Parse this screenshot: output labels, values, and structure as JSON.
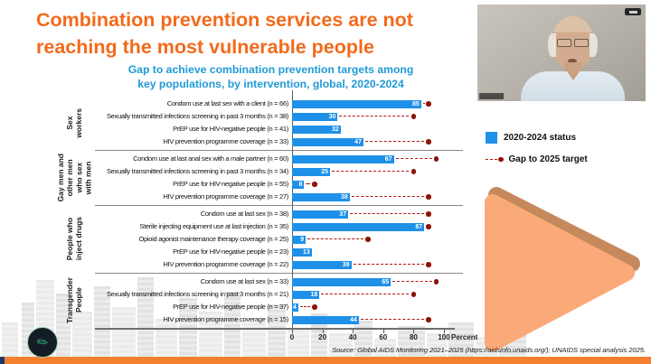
{
  "slide": {
    "title_line1": "Combination prevention services are not",
    "title_line2": "reaching the most vulnerable people",
    "source": "Source: Global AIDS Monitoring 2021–2025 (https://aidsinfo.unaids.org/); UNAIDS special analysis 2025."
  },
  "colors": {
    "title_orange": "#F26A1B",
    "subtitle_blue": "#1F9AD7",
    "bar_blue": "#1E90E8",
    "gap_dash_red": "#B01513",
    "target_dot_red": "#8E1307",
    "footer_accent_orange": "#F2802F",
    "triangle_fill": "#FAA978",
    "triangle_edge": "#C6895C"
  },
  "chart_data": {
    "type": "bar",
    "orientation": "horizontal",
    "title": "Gap to achieve combination prevention targets among key populations, by intervention, global, 2020-2024",
    "xlabel": "Percent",
    "xlim": [
      0,
      100
    ],
    "xticks": [
      0,
      20,
      40,
      60,
      80,
      100
    ],
    "legend": [
      {
        "label": "2020-2024 status",
        "marker": "bar",
        "color": "#1E90E8"
      },
      {
        "label": "Gap to 2025 target",
        "marker": "dashed-line-dot",
        "color": "#8E1307"
      }
    ],
    "groups": [
      {
        "name": "Sex workers",
        "name_lines": [
          "Sex",
          "workers"
        ],
        "rows": [
          {
            "label": "Condom use at last sex with a client (n = 66)",
            "status": 85,
            "target": 90
          },
          {
            "label": "Sexually transmitted infections screening in past 3 months (n = 38)",
            "status": 30,
            "target": 80
          },
          {
            "label": "PrEP use for HIV-negative people (n = 41)",
            "status": 32,
            "target": null
          },
          {
            "label": "HIV prevention programme coverage (n = 33)",
            "status": 47,
            "target": 90
          }
        ]
      },
      {
        "name": "Gay men and other men who sex with men",
        "name_lines": [
          "Gay men and",
          "other men",
          "who sex",
          "with men"
        ],
        "rows": [
          {
            "label": "Condom use at last anal sex with a male partner (n = 60)",
            "status": 67,
            "target": 95
          },
          {
            "label": "Sexually transmitted infections screening in past 3 months (n = 34)",
            "status": 25,
            "target": 80
          },
          {
            "label": "PrEP use for HIV-negative people (n = 55)",
            "status": 8,
            "target": 15
          },
          {
            "label": "HIV prevention programme coverage (n = 27)",
            "status": 38,
            "target": 90
          }
        ]
      },
      {
        "name": "People who inject drugs",
        "name_lines": [
          "People who",
          "inject drugs"
        ],
        "rows": [
          {
            "label": "Condom use at last sex (n = 38)",
            "status": 37,
            "target": 90
          },
          {
            "label": "Sterile injecting equipment use at last injection (n = 35)",
            "status": 87,
            "target": 90
          },
          {
            "label": "Opioid agonist maintenance therapy coverage (n = 25)",
            "status": 9,
            "target": 50
          },
          {
            "label": "PrEP use for HIV-negative people (n = 23)",
            "status": 13,
            "target": null
          },
          {
            "label": "HIV prevention programme coverage (n = 22)",
            "status": 39,
            "target": 90
          }
        ]
      },
      {
        "name": "Transgender People",
        "name_lines": [
          "Transgender",
          "People"
        ],
        "rows": [
          {
            "label": "Condom use at last sex (n = 33)",
            "status": 65,
            "target": 95
          },
          {
            "label": "Sexually transmitted infections screening in past 3 months (n = 21)",
            "status": 18,
            "target": 80
          },
          {
            "label": "PrEP use for HIV-negative people (n = 37)",
            "status": 4,
            "target": 15
          },
          {
            "label": "HIV prevention programme coverage (n = 15)",
            "status": 44,
            "target": 90
          }
        ]
      }
    ]
  }
}
